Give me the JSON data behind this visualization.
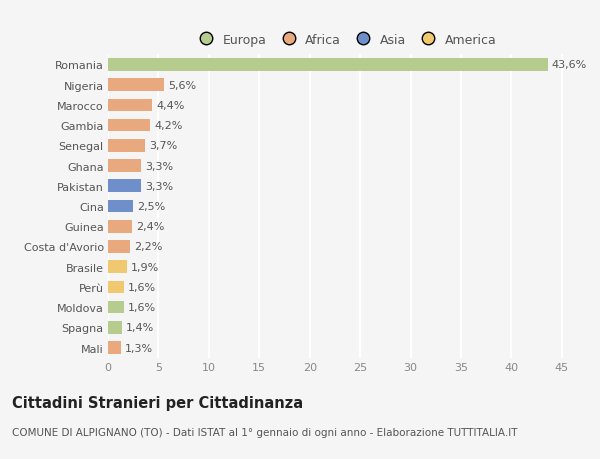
{
  "countries": [
    "Romania",
    "Nigeria",
    "Marocco",
    "Gambia",
    "Senegal",
    "Ghana",
    "Pakistan",
    "Cina",
    "Guinea",
    "Costa d'Avorio",
    "Brasile",
    "Perù",
    "Moldova",
    "Spagna",
    "Mali"
  ],
  "values": [
    43.6,
    5.6,
    4.4,
    4.2,
    3.7,
    3.3,
    3.3,
    2.5,
    2.4,
    2.2,
    1.9,
    1.6,
    1.6,
    1.4,
    1.3
  ],
  "labels": [
    "43,6%",
    "5,6%",
    "4,4%",
    "4,2%",
    "3,7%",
    "3,3%",
    "3,3%",
    "2,5%",
    "2,4%",
    "2,2%",
    "1,9%",
    "1,6%",
    "1,6%",
    "1,4%",
    "1,3%"
  ],
  "colors": [
    "#b5cc8e",
    "#e8a97e",
    "#e8a97e",
    "#e8a97e",
    "#e8a97e",
    "#e8a97e",
    "#6e8fc9",
    "#6e8fc9",
    "#e8a97e",
    "#e8a97e",
    "#f0c870",
    "#f0c870",
    "#b5cc8e",
    "#b5cc8e",
    "#e8a97e"
  ],
  "legend_labels": [
    "Europa",
    "Africa",
    "Asia",
    "America"
  ],
  "legend_colors": [
    "#b5cc8e",
    "#e8a97e",
    "#6e8fc9",
    "#f0c870"
  ],
  "title": "Cittadini Stranieri per Cittadinanza",
  "subtitle": "COMUNE DI ALPIGNANO (TO) - Dati ISTAT al 1° gennaio di ogni anno - Elaborazione TUTTITALIA.IT",
  "xlim": [
    0,
    47
  ],
  "xticks": [
    0,
    5,
    10,
    15,
    20,
    25,
    30,
    35,
    40,
    45
  ],
  "background_color": "#f5f5f5",
  "grid_color": "#ffffff",
  "bar_height": 0.62,
  "label_fontsize": 8,
  "tick_fontsize": 8,
  "title_fontsize": 10.5,
  "subtitle_fontsize": 7.5,
  "legend_fontsize": 9
}
